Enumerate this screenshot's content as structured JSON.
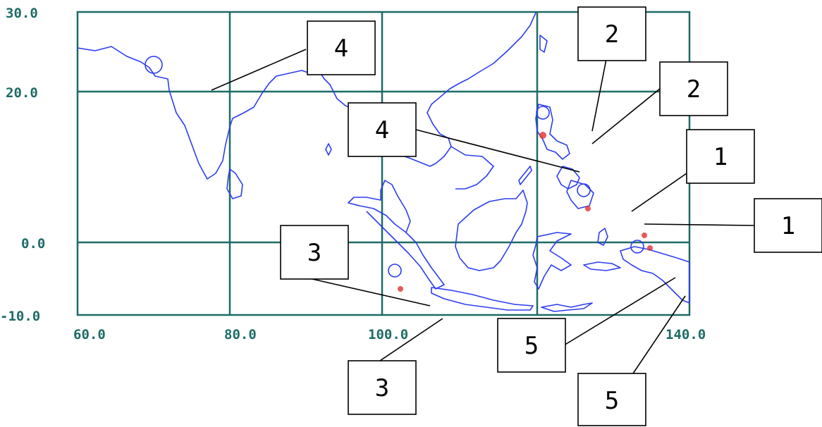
{
  "map": {
    "x_ticks": [
      "60.0",
      "80.0",
      "100.0",
      "140.0"
    ],
    "y_ticks": [
      "30.0",
      "20.0",
      "0.0",
      "-10.0"
    ],
    "colors": {
      "grid": "#1d6b66",
      "coast": "#2d3df0",
      "marker": "#e0312f",
      "frame": "#1d6b66"
    }
  },
  "callouts": [
    {
      "label": "4"
    },
    {
      "label": "2"
    },
    {
      "label": "2"
    },
    {
      "label": "4"
    },
    {
      "label": "1"
    },
    {
      "label": "1"
    },
    {
      "label": "3"
    },
    {
      "label": "3"
    },
    {
      "label": "5"
    },
    {
      "label": "5"
    }
  ]
}
